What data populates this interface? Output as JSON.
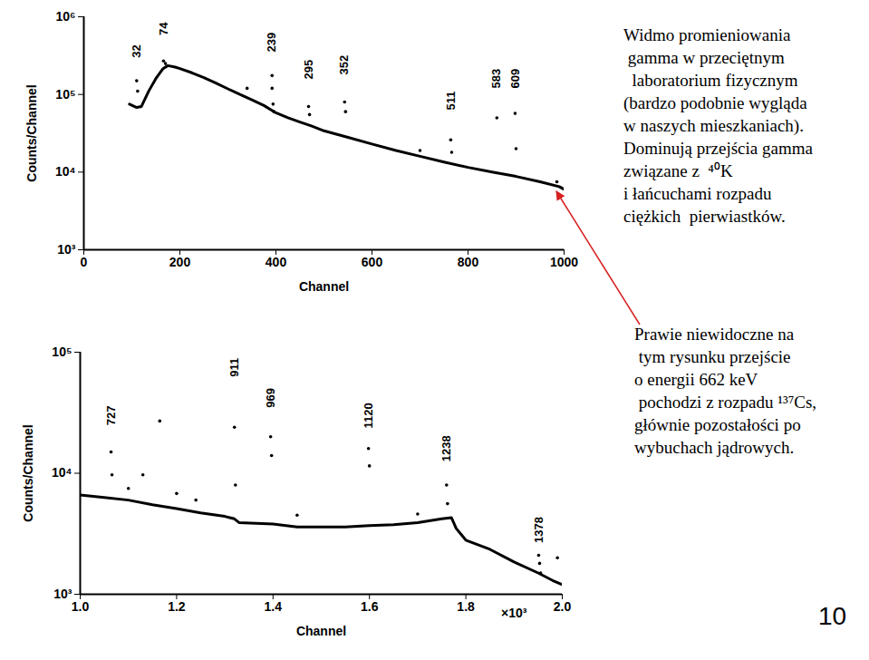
{
  "chart_data": [
    {
      "type": "scatter",
      "log": "y",
      "xlabel": "Channel",
      "ylabel": "Counts/Channel",
      "xlim": [
        0,
        1000
      ],
      "xticks": [
        0,
        200,
        400,
        600,
        800,
        1000
      ],
      "ylim": [
        1000,
        1000000
      ],
      "yticks": [
        {
          "value": 1000,
          "label": "10³"
        },
        {
          "value": 10000,
          "label": "10⁴"
        },
        {
          "value": 100000,
          "label": "10⁵"
        },
        {
          "value": 1000000,
          "label": "10⁶"
        }
      ],
      "series": [
        {
          "type": "line",
          "color": "#000000",
          "x": [
            95,
            110,
            120,
            135,
            150,
            165,
            175,
            190,
            200,
            225,
            250,
            275,
            300,
            325,
            350,
            375,
            400,
            425,
            450,
            475,
            500,
            550,
            600,
            650,
            700,
            750,
            800,
            850,
            900,
            950,
            990,
            1000
          ],
          "values": [
            75000,
            68000,
            70000,
            110000,
            160000,
            215000,
            235000,
            225000,
            215000,
            190000,
            165000,
            140000,
            118000,
            100000,
            85000,
            72000,
            58000,
            50000,
            44000,
            39000,
            34000,
            28000,
            23000,
            19000,
            16000,
            13500,
            11500,
            10000,
            8800,
            7500,
            6500,
            6000
          ]
        },
        {
          "type": "scatter",
          "color": "#000000",
          "x": [
            110,
            112,
            166,
            170,
            340,
            392,
            392,
            394,
            396,
            468,
            470,
            543,
            545,
            700,
            764,
            766,
            860,
            898,
            900,
            985
          ],
          "values": [
            150000,
            110000,
            270000,
            250000,
            120000,
            175000,
            120000,
            75000,
            60000,
            70000,
            55000,
            80000,
            60000,
            19000,
            26000,
            18000,
            50000,
            57000,
            20000,
            7500
          ]
        }
      ],
      "peak_labels": [
        {
          "text": "32",
          "x": 110,
          "y": 360000
        },
        {
          "text": "74",
          "x": 166,
          "y": 700000
        },
        {
          "text": "239",
          "x": 392,
          "y": 470000
        },
        {
          "text": "295",
          "x": 468,
          "y": 210000
        },
        {
          "text": "352",
          "x": 543,
          "y": 240000
        },
        {
          "text": "511",
          "x": 764,
          "y": 83000
        },
        {
          "text": "583",
          "x": 860,
          "y": 160000
        },
        {
          "text": "609",
          "x": 898,
          "y": 160000
        }
      ]
    },
    {
      "type": "scatter",
      "log": "y",
      "xlabel": "Channel",
      "ylabel": "Counts/Channel",
      "xlim": [
        1000,
        2000
      ],
      "xticks": [
        {
          "value": 1000,
          "label": "1.0"
        },
        {
          "value": 1200,
          "label": "1.2"
        },
        {
          "value": 1400,
          "label": "1.4"
        },
        {
          "value": 1600,
          "label": "1.6"
        },
        {
          "value": 1800,
          "label": "1.8"
        },
        {
          "value": 2000,
          "label": "2.0"
        }
      ],
      "ylim": [
        1000,
        100000
      ],
      "yticks": [
        {
          "value": 1000,
          "label": "10³"
        },
        {
          "value": 10000,
          "label": "10⁴"
        },
        {
          "value": 100000,
          "label": "10⁵"
        }
      ],
      "series": [
        {
          "type": "line",
          "color": "#000000",
          "x": [
            1000,
            1050,
            1100,
            1150,
            1200,
            1250,
            1300,
            1320,
            1330,
            1400,
            1450,
            1500,
            1550,
            1600,
            1650,
            1700,
            1750,
            1770,
            1780,
            1800,
            1850,
            1900,
            1950,
            1980,
            2000
          ],
          "values": [
            6600,
            6300,
            6000,
            5500,
            5100,
            4700,
            4400,
            4200,
            3900,
            3800,
            3600,
            3600,
            3600,
            3700,
            3750,
            3900,
            4200,
            4300,
            3500,
            2800,
            2350,
            1850,
            1500,
            1300,
            1200
          ]
        },
        {
          "type": "scatter",
          "color": "#000000",
          "x": [
            1064,
            1066,
            1100,
            1130,
            1165,
            1200,
            1240,
            1320,
            1322,
            1395,
            1397,
            1450,
            1598,
            1600,
            1700,
            1760,
            1762,
            1951,
            1953,
            1955,
            1990
          ],
          "values": [
            15000,
            9700,
            7500,
            9700,
            27000,
            6800,
            6000,
            24000,
            8000,
            20000,
            14000,
            4500,
            16000,
            11500,
            4600,
            8000,
            5600,
            2100,
            1800,
            1500,
            2000
          ]
        }
      ],
      "peak_labels": [
        {
          "text": "727",
          "x": 1064,
          "y": 30000
        },
        {
          "text": "911",
          "x": 1320,
          "y": 75000
        },
        {
          "text": "969",
          "x": 1395,
          "y": 42000
        },
        {
          "text": "1120",
          "x": 1598,
          "y": 30000
        },
        {
          "text": "1238",
          "x": 1760,
          "y": 16000
        },
        {
          "text": "1378",
          "x": 1951,
          "y": 3400
        }
      ],
      "annotations": [
        {
          "text": "×10³",
          "x": 1900,
          "y": 700
        }
      ]
    }
  ],
  "notes": {
    "description": [
      "Widmo promieniowania",
      " gamma w przeciętnym",
      "  laboratorium fizycznym",
      "(bardzo podobnie wygląda",
      "w naszych mieszkaniach).",
      "Dominują przejścia gamma",
      "związane z  ⁴⁰K",
      "i łańcuchami rozpadu",
      "ciężkich  pierwiastków."
    ],
    "cs137_note": [
      "Prawie niewidoczne na",
      " tym rysunku przejście",
      "o energii 662 keV",
      " pochodzi z rozpadu ¹³⁷Cs,",
      "głównie pozostałości po",
      "wybuchach jądrowych."
    ]
  },
  "page_number": "10"
}
